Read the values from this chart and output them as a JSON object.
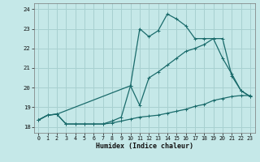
{
  "xlabel": "Humidex (Indice chaleur)",
  "bg_color": "#c5e8e8",
  "grid_color": "#a8d0d0",
  "line_color": "#1a6b6b",
  "xlim": [
    -0.5,
    23.5
  ],
  "ylim": [
    17.7,
    24.3
  ],
  "yticks": [
    18,
    19,
    20,
    21,
    22,
    23,
    24
  ],
  "xticks": [
    0,
    1,
    2,
    3,
    4,
    5,
    6,
    7,
    8,
    9,
    10,
    11,
    12,
    13,
    14,
    15,
    16,
    17,
    18,
    19,
    20,
    21,
    22,
    23
  ],
  "line1_x": [
    0,
    1,
    2,
    3,
    4,
    5,
    6,
    7,
    8,
    9,
    10,
    11,
    12,
    13,
    14,
    15,
    16,
    17,
    18,
    19,
    20,
    21,
    22,
    23
  ],
  "line1_y": [
    18.35,
    18.6,
    18.65,
    18.15,
    18.15,
    18.15,
    18.15,
    18.15,
    18.2,
    18.3,
    18.4,
    18.5,
    18.55,
    18.6,
    18.7,
    18.8,
    18.9,
    19.05,
    19.15,
    19.35,
    19.45,
    19.55,
    19.6,
    19.6
  ],
  "line2_x": [
    0,
    1,
    2,
    3,
    4,
    5,
    6,
    7,
    8,
    9,
    10,
    11,
    12,
    13,
    14,
    15,
    16,
    17,
    18,
    19,
    20,
    21,
    22,
    23
  ],
  "line2_y": [
    18.35,
    18.6,
    18.65,
    18.15,
    18.15,
    18.15,
    18.15,
    18.15,
    18.3,
    18.5,
    20.1,
    19.1,
    20.5,
    20.8,
    21.15,
    21.5,
    21.85,
    22.0,
    22.2,
    22.5,
    21.5,
    20.7,
    19.85,
    19.55
  ],
  "line3_x": [
    0,
    1,
    2,
    10,
    11,
    12,
    13,
    14,
    15,
    16,
    17,
    18,
    19,
    20,
    21,
    22,
    23
  ],
  "line3_y": [
    18.35,
    18.6,
    18.65,
    20.1,
    23.0,
    22.6,
    22.9,
    23.75,
    23.5,
    23.15,
    22.5,
    22.5,
    22.5,
    22.5,
    20.6,
    19.85,
    19.55
  ]
}
